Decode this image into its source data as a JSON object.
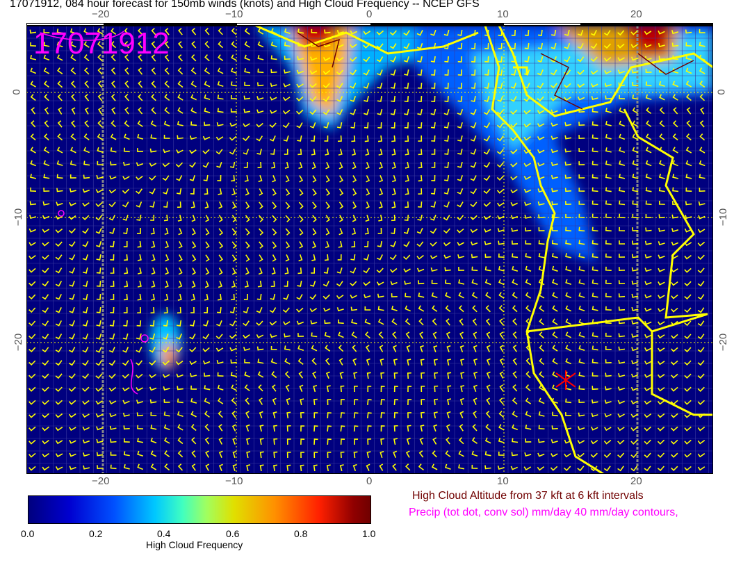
{
  "title": "17071912, 084 hour forecast for 150mb winds (knots) and High Cloud Frequency -- NCEP GFS",
  "stamp": "17071912",
  "x_ticks": [
    "−20",
    "−10",
    "0",
    "10",
    "20"
  ],
  "y_ticks": [
    "0",
    "−10",
    "−20"
  ],
  "colorbar": {
    "labels": [
      "0.0",
      "0.2",
      "0.4",
      "0.6",
      "0.8",
      "1.0"
    ],
    "title": "High Cloud Frequency"
  },
  "legend": {
    "altitude": "High Cloud Altitude from 37 kft at 6 kft intervals",
    "precip": "Precip (tot dot, conv sol) mm/day 40 mm/day contours,"
  },
  "colors": {
    "background": "#00007f",
    "barbs": "#ffff00",
    "coast": "#ffff00",
    "precip": "#ff00ff",
    "altitude": "#700000",
    "marker": "#ff0000"
  }
}
